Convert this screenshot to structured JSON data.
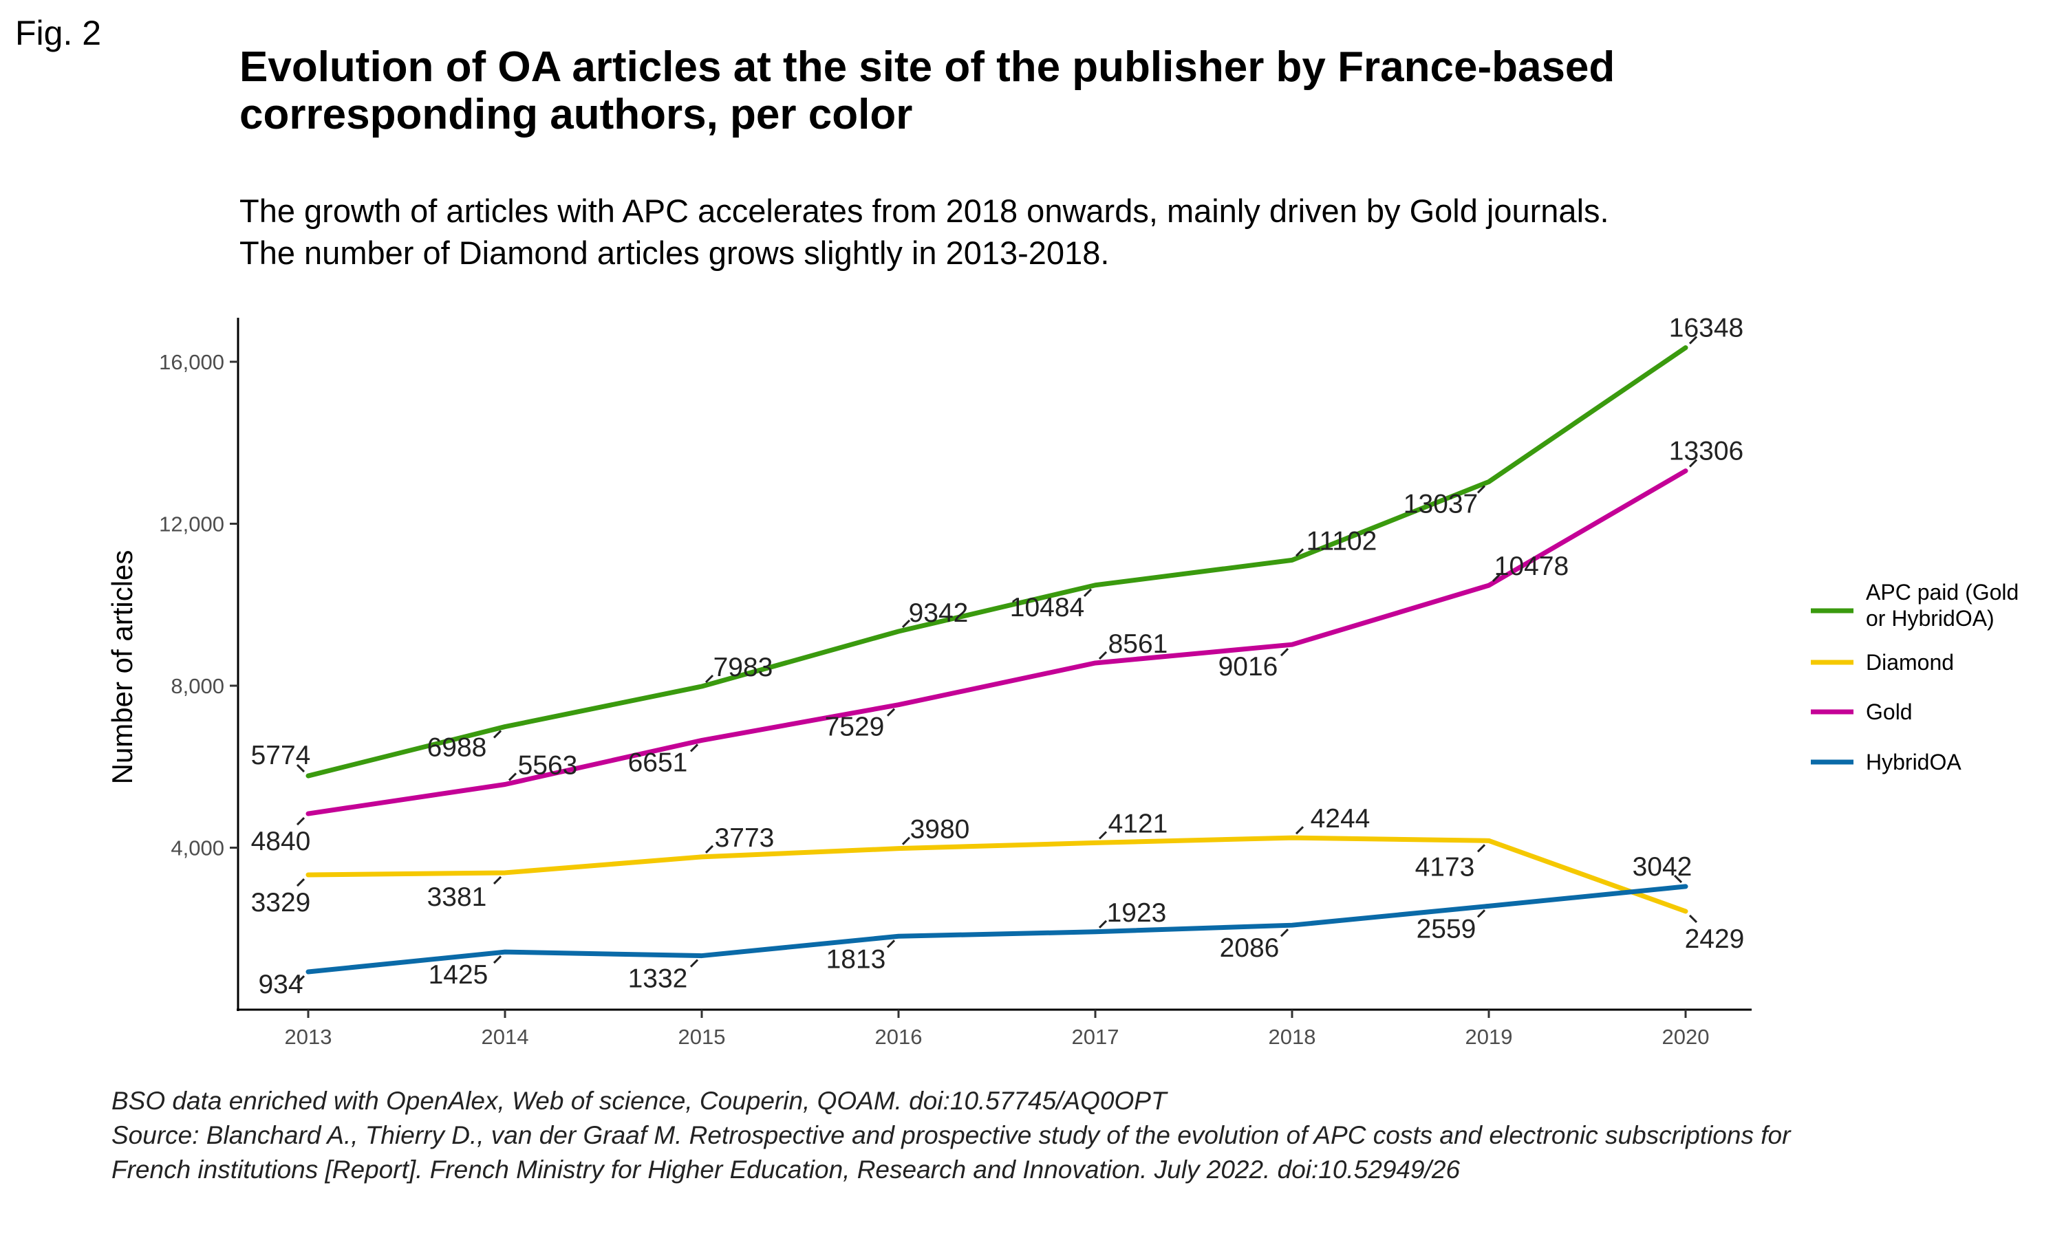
{
  "fig_label": "Fig. 2",
  "title_lines": [
    "Evolution of OA articles at the site of the publisher by France-based",
    "corresponding authors, per color"
  ],
  "subtitle_lines": [
    "The growth of articles with APC accelerates from 2018 onwards, mainly driven by Gold journals.",
    "The number of Diamond articles grows slightly in 2013-2018."
  ],
  "caption_lines": [
    "BSO data enriched with OpenAlex, Web of science, Couperin, QOAM. doi:10.57745/AQ0OPT",
    "Source: Blanchard A., Thierry D., van der Graaf M. Retrospective and prospective study of the evolution of APC costs and electronic subscriptions for",
    "French institutions [Report]. French Ministry for Higher Education, Research and Innovation. July 2022. doi:10.52949/26"
  ],
  "chart_data": {
    "type": "line",
    "x": [
      2013,
      2014,
      2015,
      2016,
      2017,
      2018,
      2019,
      2020
    ],
    "xlabel": "",
    "ylabel": "Number of articles",
    "ylim": [
      0,
      17000
    ],
    "yticks": [
      4000,
      8000,
      12000,
      16000
    ],
    "ytick_labels": [
      "4,000",
      "8,000",
      "12,000",
      "16,000"
    ],
    "xtick_labels": [
      "2013",
      "2014",
      "2015",
      "2016",
      "2017",
      "2018",
      "2019",
      "2020"
    ],
    "grid": false,
    "legend_position": "right",
    "data_labels": true,
    "series": [
      {
        "name": "APC paid (Gold or HybridOA)",
        "legend_lines": [
          "APC paid (Gold",
          "or HybridOA)"
        ],
        "color": "#3a9a0e",
        "values": [
          5774,
          6988,
          7983,
          9342,
          10484,
          11102,
          13037,
          16348
        ]
      },
      {
        "name": "Diamond",
        "legend_lines": [
          "Diamond"
        ],
        "color": "#f5c800",
        "values": [
          3329,
          3381,
          3773,
          3980,
          4121,
          4244,
          4173,
          2429
        ]
      },
      {
        "name": "Gold",
        "legend_lines": [
          "Gold"
        ],
        "color": "#c40096",
        "values": [
          4840,
          5563,
          6651,
          7529,
          8561,
          9016,
          10478,
          13306
        ]
      },
      {
        "name": "HybridOA",
        "legend_lines": [
          "HybridOA"
        ],
        "color": "#0a6aa8",
        "values": [
          934,
          1425,
          1332,
          1813,
          1923,
          2086,
          2559,
          3042
        ]
      }
    ]
  }
}
